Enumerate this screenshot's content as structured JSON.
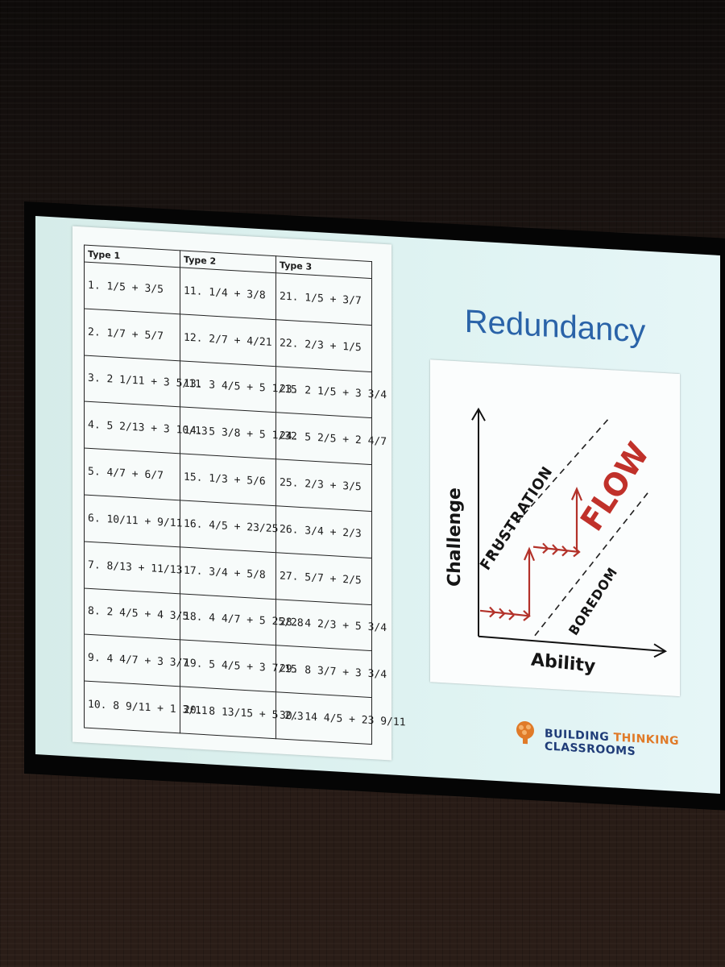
{
  "slide": {
    "title": "Redundancy",
    "worksheet": {
      "headers": [
        "Type 1",
        "Type 2",
        "Type 3"
      ],
      "rows": [
        [
          "1. 1/5 + 3/5",
          "11. 1/4 + 3/8",
          "21. 1/5 + 3/7"
        ],
        [
          "2. 1/7 + 5/7",
          "12. 2/7 + 4/21",
          "22. 2/3 + 1/5"
        ],
        [
          "3. 2 1/11 + 3 5/11",
          "13. 3 4/5 + 5 1/15",
          "23. 2 1/5 + 3 3/4"
        ],
        [
          "4. 5 2/13 + 3 10/13",
          "14. 5 3/8 + 5 1/32",
          "24. 5 2/5 + 2 4/7"
        ],
        [
          "5. 4/7 + 6/7",
          "15. 1/3 + 5/6",
          "25. 2/3 + 3/5"
        ],
        [
          "6. 10/11 + 9/11",
          "16. 4/5 + 23/25",
          "26. 3/4 + 2/3"
        ],
        [
          "7. 8/13 + 11/13",
          "17. 3/4 + 5/8",
          "27. 5/7 + 2/5"
        ],
        [
          "8. 2 4/5 + 4 3/5",
          "18. 4 4/7 + 5 25/28",
          "28. 4 2/3 + 5 3/4"
        ],
        [
          "9. 4 4/7 + 3 3/7",
          "19. 5 4/5 + 3 7/15",
          "29. 8 3/7 + 3 3/4"
        ],
        [
          "10. 8 9/11 + 1 3/11",
          "20. 8 13/15 + 5 2/3",
          "30. 14 4/5 + 23 9/11"
        ]
      ]
    },
    "graph": {
      "y_label": "Challenge",
      "x_label": "Ability",
      "upper_region": "FRUSTRATION",
      "middle_region": "FLOW",
      "lower_region": "BOREDOM"
    },
    "logo": {
      "text_part1": "BUILDING ",
      "text_accent": "THINKING",
      "text_part2": " CLASSROOMS",
      "icon": "brain-icon"
    }
  },
  "colors": {
    "title": "#2a63a8",
    "flow": "#c0312a",
    "slide_bg": "#dff3f2"
  }
}
